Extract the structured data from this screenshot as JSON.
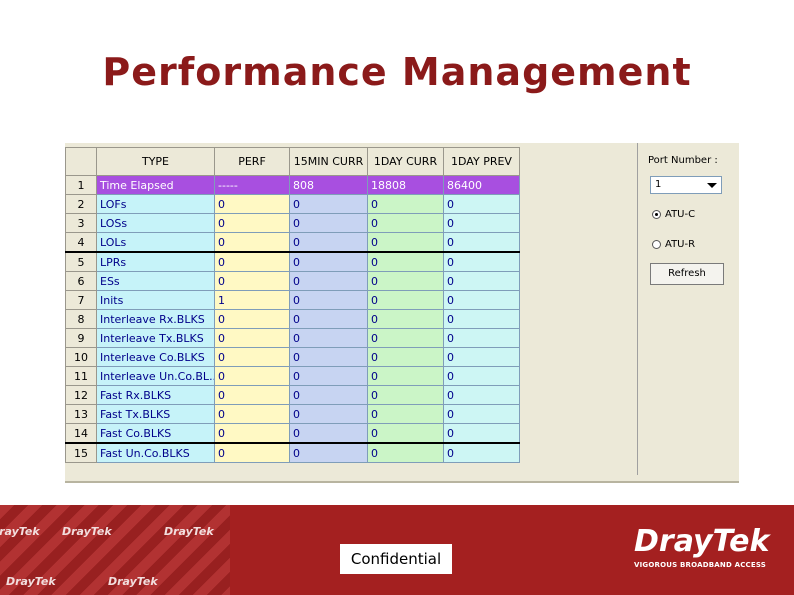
{
  "slide": {
    "title": "Performance Management",
    "confidential": "Confidential"
  },
  "table": {
    "headers": [
      "",
      "TYPE",
      "PERF",
      "15MIN CURR",
      "1DAY CURR",
      "1DAY PREV"
    ],
    "rows": [
      [
        "1",
        "Time Elapsed",
        "-----",
        "808",
        "18808",
        "86400"
      ],
      [
        "2",
        "LOFs",
        "0",
        "0",
        "0",
        "0"
      ],
      [
        "3",
        "LOSs",
        "0",
        "0",
        "0",
        "0"
      ],
      [
        "4",
        "LOLs",
        "0",
        "0",
        "0",
        "0"
      ],
      [
        "5",
        "LPRs",
        "0",
        "0",
        "0",
        "0"
      ],
      [
        "6",
        "ESs",
        "0",
        "0",
        "0",
        "0"
      ],
      [
        "7",
        "Inits",
        "1",
        "0",
        "0",
        "0"
      ],
      [
        "8",
        "Interleave Rx.BLKS",
        "0",
        "0",
        "0",
        "0"
      ],
      [
        "9",
        "Interleave Tx.BLKS",
        "0",
        "0",
        "0",
        "0"
      ],
      [
        "10",
        "Interleave Co.BLKS",
        "0",
        "0",
        "0",
        "0"
      ],
      [
        "11",
        "Interleave Un.Co.BL...",
        "0",
        "0",
        "0",
        "0"
      ],
      [
        "12",
        "Fast Rx.BLKS",
        "0",
        "0",
        "0",
        "0"
      ],
      [
        "13",
        "Fast Tx.BLKS",
        "0",
        "0",
        "0",
        "0"
      ],
      [
        "14",
        "Fast Co.BLKS",
        "0",
        "0",
        "0",
        "0"
      ],
      [
        "15",
        "Fast Un.Co.BLKS",
        "0",
        "0",
        "0",
        "0"
      ]
    ]
  },
  "side_panel": {
    "port_label": "Port Number :",
    "port_value": "1",
    "radio_atuc": "ATU-C",
    "radio_atur": "ATU-R",
    "refresh_label": "Refresh"
  },
  "footer": {
    "watermark": "DrayTek",
    "logo_name": "DrayTek",
    "logo_tagline": "VIGOROUS BROADBAND ACCESS"
  },
  "colors": {
    "title": "#8b1a1a",
    "selected_row": "#a84fe0",
    "footer_red": "#a42020"
  }
}
